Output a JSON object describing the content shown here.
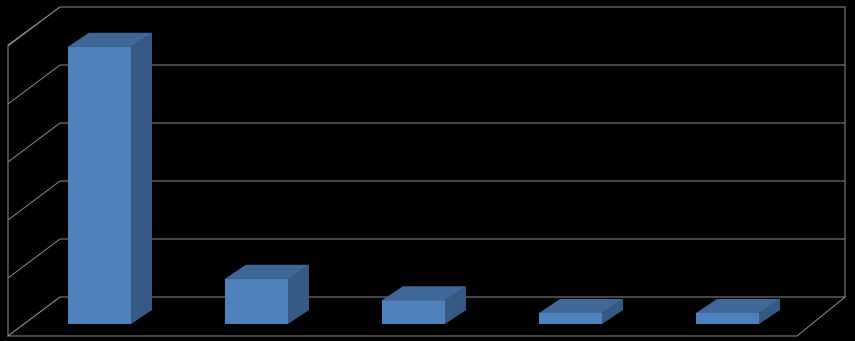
{
  "chart_data": {
    "type": "bar",
    "categories": [
      null,
      null,
      null,
      null,
      null
    ],
    "values": [
      4.78,
      0.78,
      0.41,
      0.19,
      0.19
    ],
    "color": "#4f81bd",
    "ylim": [
      0,
      5
    ],
    "yticks": [
      0,
      1,
      2,
      3,
      4,
      5
    ],
    "grid": true
  }
}
